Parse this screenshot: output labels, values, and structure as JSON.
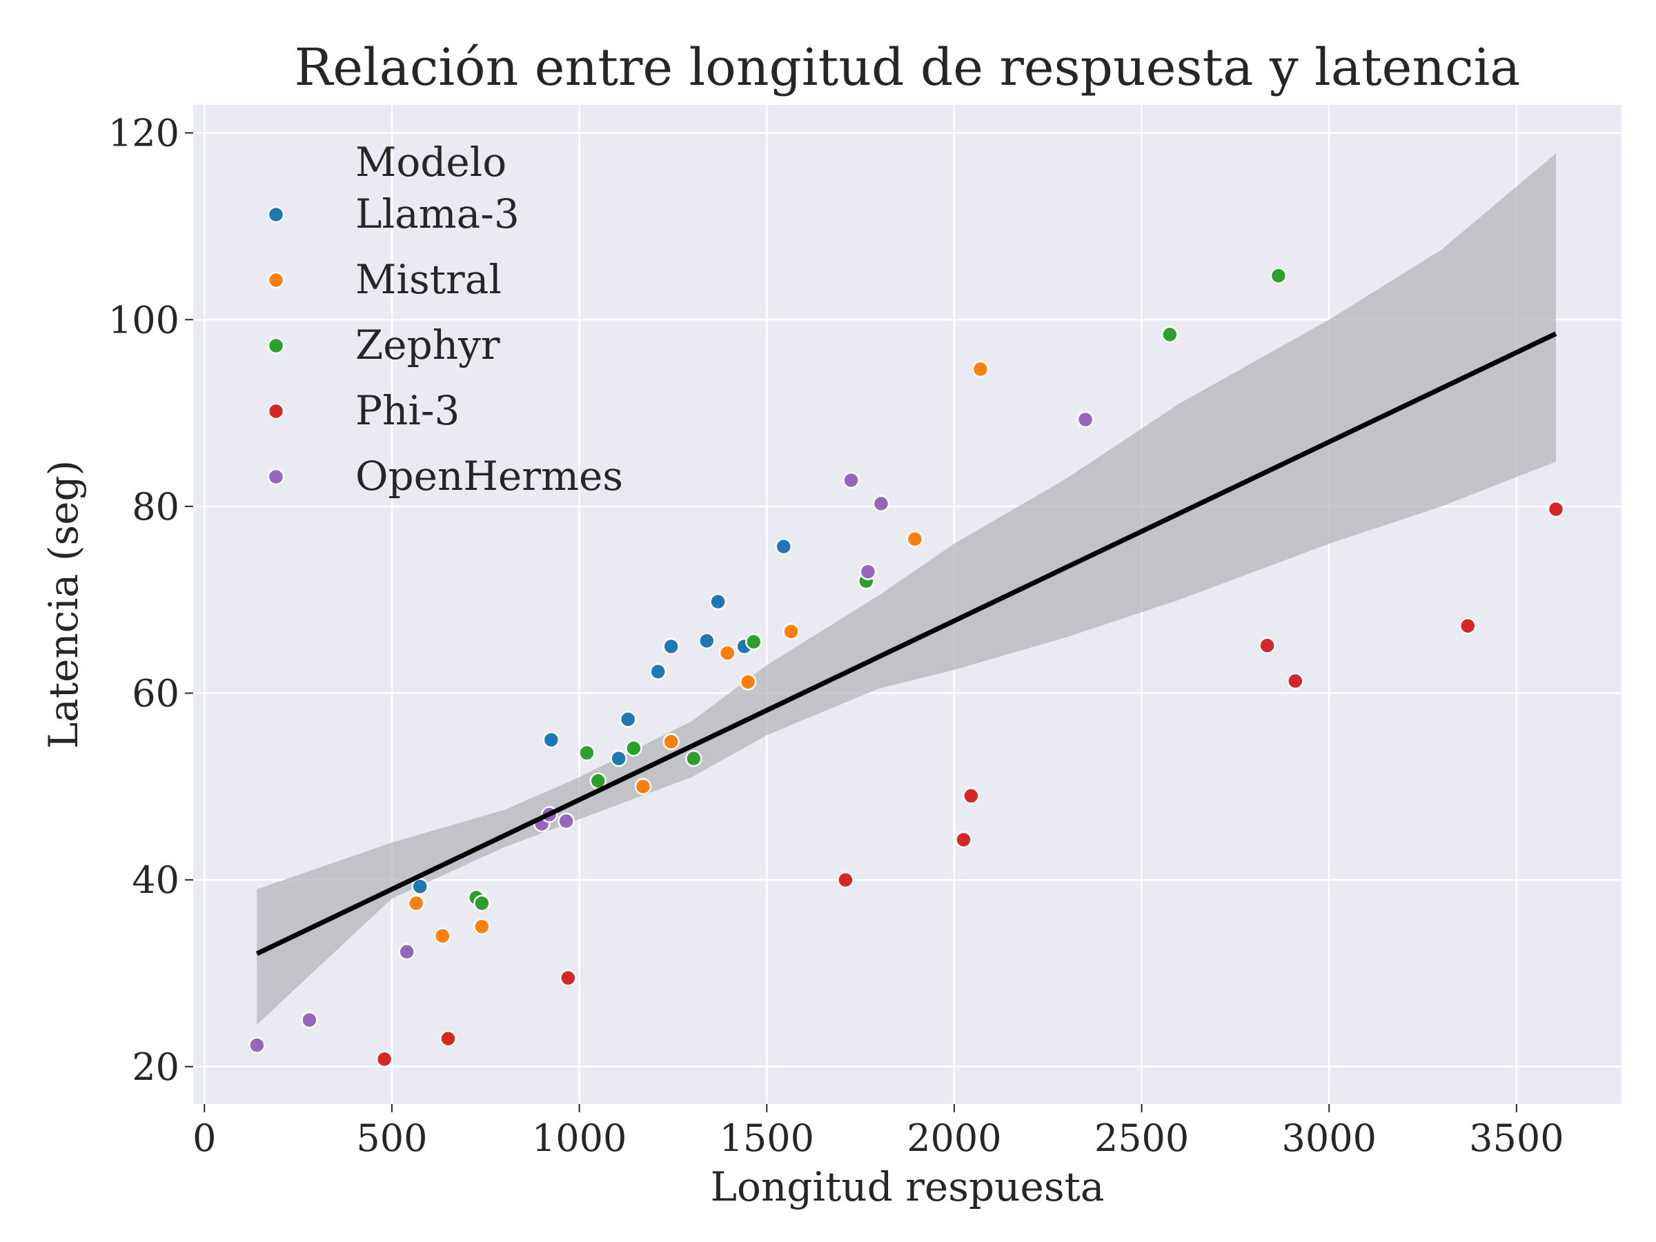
{
  "chart_data": {
    "type": "scatter",
    "title": "Relación entre longitud de respuesta y latencia",
    "xlabel": "Longitud respuesta",
    "ylabel": "Latencia (seg)",
    "xlim": [
      -30,
      3780
    ],
    "ylim": [
      16,
      123
    ],
    "xticks": [
      "0",
      "500",
      "1000",
      "1500",
      "2000",
      "2500",
      "3000",
      "3500"
    ],
    "yticks": [
      "20",
      "40",
      "60",
      "80",
      "100",
      "120"
    ],
    "grid": true,
    "legend": {
      "title": "Modelo",
      "placement": "top-left"
    },
    "colors": {
      "Llama-3": "#1f77b4",
      "Mistral": "#ff7f0e",
      "Zephyr": "#2ca02c",
      "Phi-3": "#d62728",
      "OpenHermes": "#9467bd",
      "background": "#eaeaf2",
      "grid": "#ffffff",
      "regression_line": "#000000",
      "confidence_band": "#b0b0b8"
    },
    "series": [
      {
        "name": "Llama-3",
        "points": [
          [
            575,
            39.3
          ],
          [
            925,
            55
          ],
          [
            1105,
            53
          ],
          [
            1130,
            57.2
          ],
          [
            1210,
            62.3
          ],
          [
            1245,
            65
          ],
          [
            1340,
            65.6
          ],
          [
            1370,
            69.8
          ],
          [
            1440,
            65
          ],
          [
            1545,
            75.7
          ]
        ]
      },
      {
        "name": "Mistral",
        "points": [
          [
            565,
            37.5
          ],
          [
            635,
            34
          ],
          [
            740,
            35
          ],
          [
            1170,
            50
          ],
          [
            1245,
            54.8
          ],
          [
            1395,
            64.3
          ],
          [
            1450,
            61.2
          ],
          [
            1565,
            66.6
          ],
          [
            1895,
            76.5
          ],
          [
            2070,
            94.7
          ]
        ]
      },
      {
        "name": "Zephyr",
        "points": [
          [
            725,
            38.1
          ],
          [
            740,
            37.5
          ],
          [
            1020,
            53.6
          ],
          [
            1050,
            50.6
          ],
          [
            1145,
            54.1
          ],
          [
            1305,
            53
          ],
          [
            1465,
            65.5
          ],
          [
            1765,
            72
          ],
          [
            2575,
            98.4
          ],
          [
            2865,
            104.7
          ]
        ]
      },
      {
        "name": "Phi-3",
        "points": [
          [
            480,
            20.8
          ],
          [
            650,
            23
          ],
          [
            970,
            29.5
          ],
          [
            1710,
            40
          ],
          [
            2025,
            44.3
          ],
          [
            2045,
            49
          ],
          [
            2835,
            65.1
          ],
          [
            2910,
            61.3
          ],
          [
            3370,
            67.2
          ],
          [
            3605,
            79.7
          ]
        ]
      },
      {
        "name": "OpenHermes",
        "points": [
          [
            140,
            22.3
          ],
          [
            280,
            25
          ],
          [
            540,
            32.3
          ],
          [
            900,
            46
          ],
          [
            920,
            47
          ],
          [
            965,
            46.3
          ],
          [
            1725,
            82.8
          ],
          [
            1770,
            73
          ],
          [
            1805,
            80.3
          ],
          [
            2350,
            89.3
          ]
        ]
      }
    ],
    "regression": {
      "line": [
        [
          140,
          32.1
        ],
        [
          3605,
          98.5
        ]
      ],
      "band_upper": [
        [
          140,
          39
        ],
        [
          500,
          44
        ],
        [
          800,
          47.5
        ],
        [
          1000,
          51
        ],
        [
          1300,
          57
        ],
        [
          1500,
          63
        ],
        [
          1800,
          70.5
        ],
        [
          2000,
          76
        ],
        [
          2300,
          83
        ],
        [
          2600,
          91
        ],
        [
          3000,
          100
        ],
        [
          3300,
          107.5
        ],
        [
          3605,
          117.8
        ]
      ],
      "band_lower": [
        [
          140,
          24.5
        ],
        [
          500,
          38
        ],
        [
          800,
          43.5
        ],
        [
          1000,
          46.5
        ],
        [
          1300,
          51
        ],
        [
          1500,
          55.5
        ],
        [
          1800,
          60.5
        ],
        [
          2000,
          62.5
        ],
        [
          2300,
          66
        ],
        [
          2600,
          70
        ],
        [
          3000,
          76
        ],
        [
          3300,
          80
        ],
        [
          3605,
          84.8
        ]
      ]
    }
  }
}
